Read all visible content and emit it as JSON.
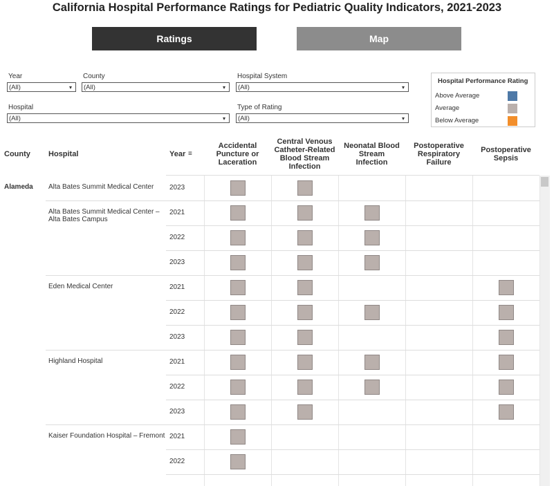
{
  "header": {
    "title": "California Hospital Performance Ratings for Pediatric Quality Indicators, 2021-2023",
    "tabs": [
      "Ratings",
      "Map"
    ]
  },
  "filters": [
    {
      "label": "Year",
      "value": "(All)"
    },
    {
      "label": "County",
      "value": "(All)"
    },
    {
      "label": "Hospital System",
      "value": "(All)"
    },
    {
      "label": "Hospital",
      "value": "(All)"
    },
    {
      "label": "Type of Rating",
      "value": "(All)"
    }
  ],
  "legend": {
    "title": "Hospital Performance Rating",
    "items": [
      {
        "label": "Above Average",
        "color": "#4e79a7"
      },
      {
        "label": "Average",
        "color": "#bab0ac"
      },
      {
        "label": "Below Average",
        "color": "#f28e2b"
      }
    ]
  },
  "table": {
    "columns": [
      "County",
      "Hospital",
      "Year"
    ],
    "indicators": [
      "Accidental Puncture or Laceration",
      "Central Venous Catheter-Related Blood Stream Infection",
      "Neonatal Blood Stream Infection",
      "Postoperative Respiratory Failure",
      "Postoperative Sepsis"
    ],
    "counties": [
      {
        "name": "Alameda",
        "hospitals": [
          {
            "name": "Alta Bates Summit Medical Center",
            "years": [
              {
                "year": "2023",
                "ratings": [
                  "Average",
                  "Average",
                  null,
                  null,
                  null
                ]
              }
            ]
          },
          {
            "name": "Alta Bates Summit Medical Center – Alta Bates Campus",
            "years": [
              {
                "year": "2021",
                "ratings": [
                  "Average",
                  "Average",
                  "Average",
                  null,
                  null
                ]
              },
              {
                "year": "2022",
                "ratings": [
                  "Average",
                  "Average",
                  "Average",
                  null,
                  null
                ]
              },
              {
                "year": "2023",
                "ratings": [
                  "Average",
                  "Average",
                  "Average",
                  null,
                  null
                ]
              }
            ]
          },
          {
            "name": "Eden Medical Center",
            "years": [
              {
                "year": "2021",
                "ratings": [
                  "Average",
                  "Average",
                  null,
                  null,
                  "Average"
                ]
              },
              {
                "year": "2022",
                "ratings": [
                  "Average",
                  "Average",
                  "Average",
                  null,
                  "Average"
                ]
              },
              {
                "year": "2023",
                "ratings": [
                  "Average",
                  "Average",
                  null,
                  null,
                  "Average"
                ]
              }
            ]
          },
          {
            "name": "Highland Hospital",
            "years": [
              {
                "year": "2021",
                "ratings": [
                  "Average",
                  "Average",
                  "Average",
                  null,
                  "Average"
                ]
              },
              {
                "year": "2022",
                "ratings": [
                  "Average",
                  "Average",
                  "Average",
                  null,
                  "Average"
                ]
              },
              {
                "year": "2023",
                "ratings": [
                  "Average",
                  "Average",
                  null,
                  null,
                  "Average"
                ]
              }
            ]
          },
          {
            "name": "Kaiser Foundation Hospital – Fremont",
            "years": [
              {
                "year": "2021",
                "ratings": [
                  "Average",
                  null,
                  null,
                  null,
                  null
                ]
              },
              {
                "year": "2022",
                "ratings": [
                  "Average",
                  null,
                  null,
                  null,
                  null
                ]
              }
            ]
          }
        ]
      }
    ]
  }
}
